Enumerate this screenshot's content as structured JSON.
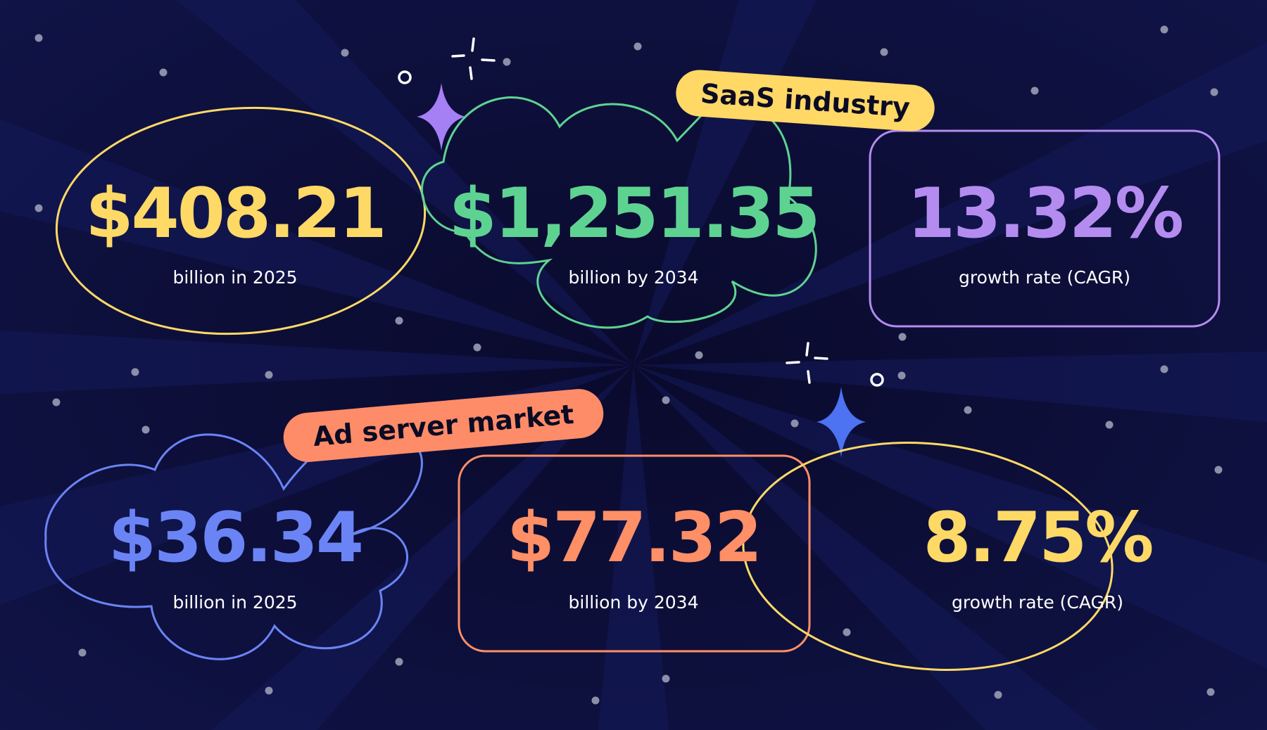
{
  "colors": {
    "background": "#080826",
    "yellow": "#ffd966",
    "green": "#5ed391",
    "purple": "#b48cf0",
    "blue": "#6b84f5",
    "orange": "#ff8f66",
    "pill_yellow": "#ffd866",
    "pill_orange": "#ff8c69"
  },
  "labels": {
    "saas": "SaaS industry",
    "ad_server": "Ad server market"
  },
  "saas_industry": {
    "size_2025": {
      "value": "$408.21",
      "caption": "billion in 2025",
      "shape": "ellipse"
    },
    "size_2034": {
      "value": "$1,251.35",
      "caption": "billion by 2034",
      "shape": "cloud"
    },
    "cagr": {
      "value": "13.32%",
      "caption": "growth rate (CAGR)",
      "shape": "rounded-rect"
    }
  },
  "ad_server_market": {
    "size_2025": {
      "value": "$36.34",
      "caption": "billion in 2025",
      "shape": "cloud"
    },
    "size_2034": {
      "value": "$77.32",
      "caption": "billion by 2034",
      "shape": "rounded-rect"
    },
    "cagr": {
      "value": "8.75%",
      "caption": "growth rate (CAGR)",
      "shape": "ellipse"
    }
  },
  "decorations": [
    "sparkle-star-icon",
    "sparkle-burst-icon",
    "ring-icon",
    "star-dot"
  ]
}
